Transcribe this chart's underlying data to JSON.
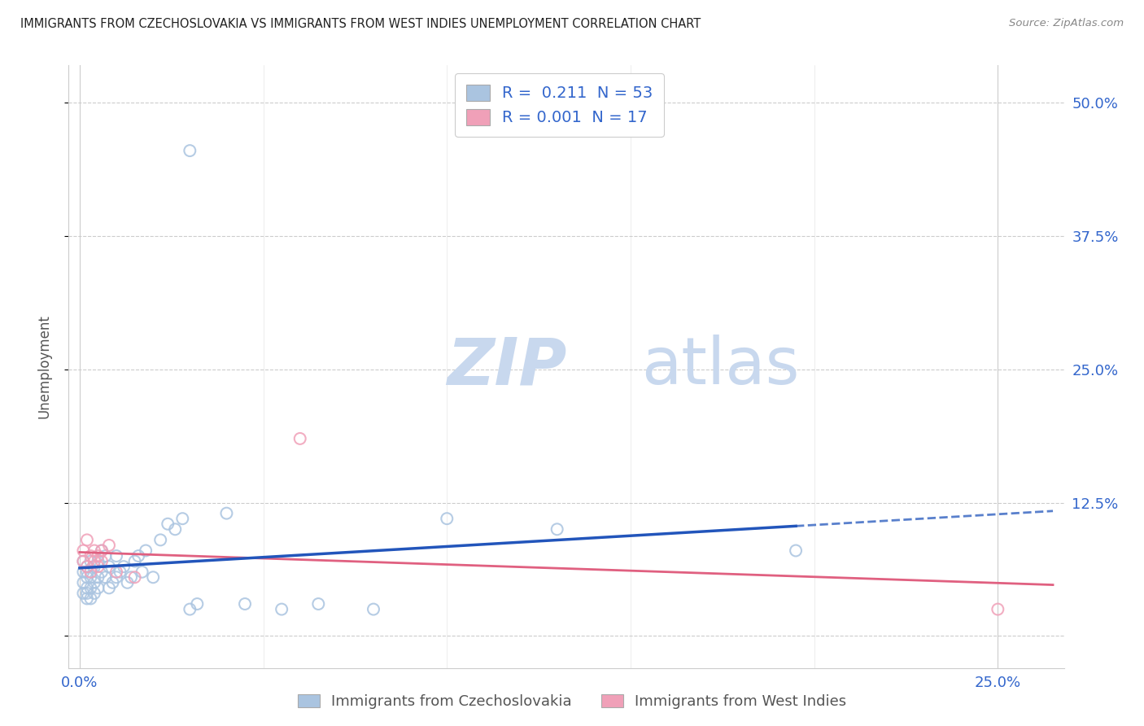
{
  "title": "IMMIGRANTS FROM CZECHOSLOVAKIA VS IMMIGRANTS FROM WEST INDIES UNEMPLOYMENT CORRELATION CHART",
  "source": "Source: ZipAtlas.com",
  "ylabel": "Unemployment",
  "x_tick_labels": [
    "0.0%",
    "25.0%"
  ],
  "y_tick_labels": [
    "",
    "12.5%",
    "25.0%",
    "37.5%",
    "50.0%"
  ],
  "y_ticks": [
    0.0,
    0.125,
    0.25,
    0.375,
    0.5
  ],
  "x_ticks": [
    0.0,
    0.25
  ],
  "xlim": [
    -0.003,
    0.268
  ],
  "ylim": [
    -0.03,
    0.535
  ],
  "legend1_r": "0.211",
  "legend1_n": "53",
  "legend2_r": "0.001",
  "legend2_n": "17",
  "legend1_label": "Immigrants from Czechoslovakia",
  "legend2_label": "Immigrants from West Indies",
  "blue_color": "#aac4e0",
  "pink_color": "#f0a0b8",
  "blue_line_color": "#2255bb",
  "pink_line_color": "#e06080",
  "blue_scatter_x": [
    0.001,
    0.001,
    0.001,
    0.001,
    0.002,
    0.002,
    0.002,
    0.002,
    0.002,
    0.002,
    0.003,
    0.003,
    0.003,
    0.003,
    0.004,
    0.004,
    0.004,
    0.005,
    0.005,
    0.005,
    0.006,
    0.006,
    0.007,
    0.007,
    0.008,
    0.008,
    0.009,
    0.01,
    0.01,
    0.011,
    0.012,
    0.013,
    0.014,
    0.015,
    0.016,
    0.017,
    0.018,
    0.02,
    0.022,
    0.024,
    0.026,
    0.028,
    0.03,
    0.032,
    0.04,
    0.045,
    0.055,
    0.065,
    0.08,
    0.1,
    0.13,
    0.195,
    0.03
  ],
  "blue_scatter_y": [
    0.06,
    0.07,
    0.05,
    0.04,
    0.055,
    0.065,
    0.045,
    0.04,
    0.035,
    0.06,
    0.07,
    0.055,
    0.045,
    0.035,
    0.065,
    0.05,
    0.04,
    0.07,
    0.055,
    0.045,
    0.08,
    0.06,
    0.075,
    0.055,
    0.065,
    0.045,
    0.05,
    0.075,
    0.055,
    0.06,
    0.065,
    0.05,
    0.055,
    0.07,
    0.075,
    0.06,
    0.08,
    0.055,
    0.09,
    0.105,
    0.1,
    0.11,
    0.025,
    0.03,
    0.115,
    0.03,
    0.025,
    0.03,
    0.025,
    0.11,
    0.1,
    0.08,
    0.455
  ],
  "pink_scatter_x": [
    0.001,
    0.001,
    0.002,
    0.002,
    0.003,
    0.003,
    0.004,
    0.004,
    0.005,
    0.005,
    0.006,
    0.006,
    0.008,
    0.01,
    0.015,
    0.06,
    0.25
  ],
  "pink_scatter_y": [
    0.08,
    0.07,
    0.09,
    0.065,
    0.075,
    0.06,
    0.08,
    0.07,
    0.075,
    0.065,
    0.08,
    0.07,
    0.085,
    0.06,
    0.055,
    0.185,
    0.025
  ],
  "background_color": "#ffffff",
  "grid_color": "#cccccc",
  "title_color": "#222222",
  "axis_label_color": "#3366cc",
  "watermark_zip": "ZIP",
  "watermark_atlas": "atlas",
  "watermark_color_zip": "#c8d8ee",
  "watermark_color_atlas": "#c8d8ee"
}
